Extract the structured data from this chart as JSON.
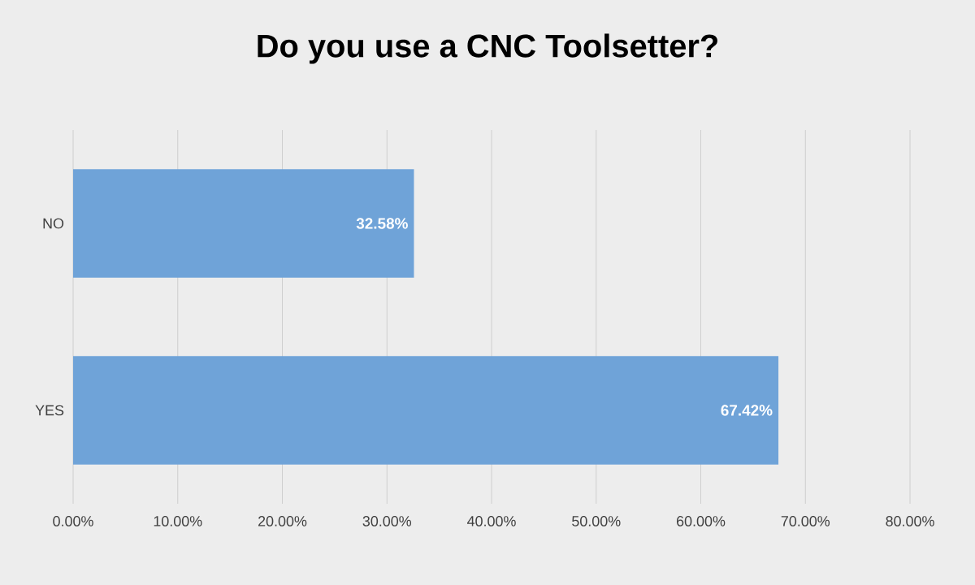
{
  "chart_data": {
    "type": "bar",
    "orientation": "horizontal",
    "title": "Do you use a CNC Toolsetter?",
    "categories": [
      "NO",
      "YES"
    ],
    "values": [
      32.58,
      67.42
    ],
    "value_labels": [
      "32.58%",
      "67.42%"
    ],
    "color": "#6fa3d8",
    "xlim": [
      0,
      80
    ],
    "xticks": [
      {
        "value": 0,
        "label": "0.00%"
      },
      {
        "value": 10,
        "label": "10.00%"
      },
      {
        "value": 20,
        "label": "20.00%"
      },
      {
        "value": 30,
        "label": "30.00%"
      },
      {
        "value": 40,
        "label": "40.00%"
      },
      {
        "value": 50,
        "label": "50.00%"
      },
      {
        "value": 60,
        "label": "60.00%"
      },
      {
        "value": 70,
        "label": "70.00%"
      },
      {
        "value": 80,
        "label": "80.00%"
      }
    ],
    "grid": "x"
  }
}
